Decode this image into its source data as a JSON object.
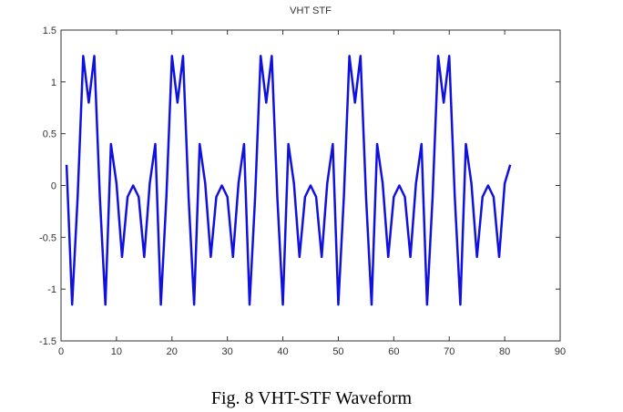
{
  "chart_data": {
    "type": "line",
    "title": "VHT STF",
    "caption": "Fig. 8 VHT-STF Waveform",
    "x": [
      1,
      2,
      3,
      4,
      5,
      6,
      7,
      8,
      9,
      10,
      11,
      12,
      13,
      14,
      15,
      16,
      17,
      18,
      19,
      20,
      21,
      22,
      23,
      24,
      25,
      26,
      27,
      28,
      29,
      30,
      31,
      32,
      33,
      34,
      35,
      36,
      37,
      38,
      39,
      40,
      41,
      42,
      43,
      44,
      45,
      46,
      47,
      48,
      49,
      50,
      51,
      52,
      53,
      54,
      55,
      56,
      57,
      58,
      59,
      60,
      61,
      62,
      63,
      64,
      65,
      66,
      67,
      68,
      69,
      70,
      71,
      72,
      73,
      74,
      75,
      76,
      77,
      78,
      79,
      80,
      81
    ],
    "values": [
      0.2,
      -1.15,
      -0.11,
      1.25,
      0.8,
      1.25,
      -0.11,
      -1.15,
      0.4,
      0.02,
      -0.69,
      -0.11,
      0,
      -0.11,
      -0.69,
      0.02,
      0.4,
      -1.15,
      -0.11,
      1.25,
      0.8,
      1.25,
      -0.11,
      -1.15,
      0.4,
      0.02,
      -0.69,
      -0.11,
      0,
      -0.11,
      -0.69,
      0.02,
      0.4,
      -1.15,
      -0.11,
      1.25,
      0.8,
      1.25,
      -0.11,
      -1.15,
      0.4,
      0.02,
      -0.69,
      -0.11,
      0,
      -0.11,
      -0.69,
      0.02,
      0.4,
      -1.15,
      -0.11,
      1.25,
      0.8,
      1.25,
      -0.11,
      -1.15,
      0.4,
      0.02,
      -0.69,
      -0.11,
      0,
      -0.11,
      -0.69,
      0.02,
      0.4,
      -1.15,
      -0.11,
      1.25,
      0.8,
      1.25,
      -0.11,
      -1.15,
      0.4,
      0.02,
      -0.69,
      -0.11,
      0,
      -0.11,
      -0.69,
      0.02,
      0.2
    ],
    "color": "#1010e0",
    "xlim": [
      0,
      90
    ],
    "xticks": [
      0,
      10,
      20,
      30,
      40,
      50,
      60,
      70,
      80,
      90
    ],
    "ylim": [
      -1.5,
      1.5
    ],
    "yticks": [
      -1.5,
      -1,
      -0.5,
      0,
      0.5,
      1,
      1.5
    ],
    "grid": false
  }
}
